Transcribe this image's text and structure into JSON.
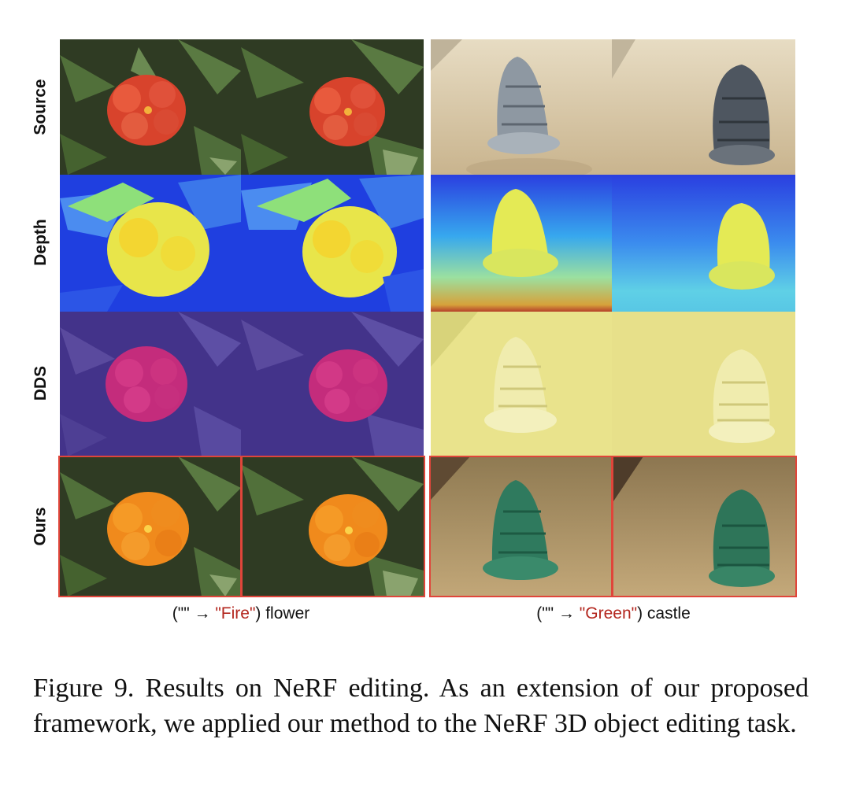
{
  "rows": [
    "Source",
    "Depth",
    "DDS",
    "Ours"
  ],
  "flower_caption": {
    "prefix": "(\"\" → ",
    "highlight": "\"Fire\"",
    "suffix": ") flower"
  },
  "castle_caption": {
    "prefix": "(\"\" → ",
    "highlight": "\"Green\"",
    "suffix": ") castle"
  },
  "figure_caption": "Figure 9. Results on NeRF editing. As an extension of our proposed framework, we applied our method to the NeRF 3D object editing task.",
  "colors": {
    "highlight": "#b3261e",
    "frame": "#e0453a"
  }
}
